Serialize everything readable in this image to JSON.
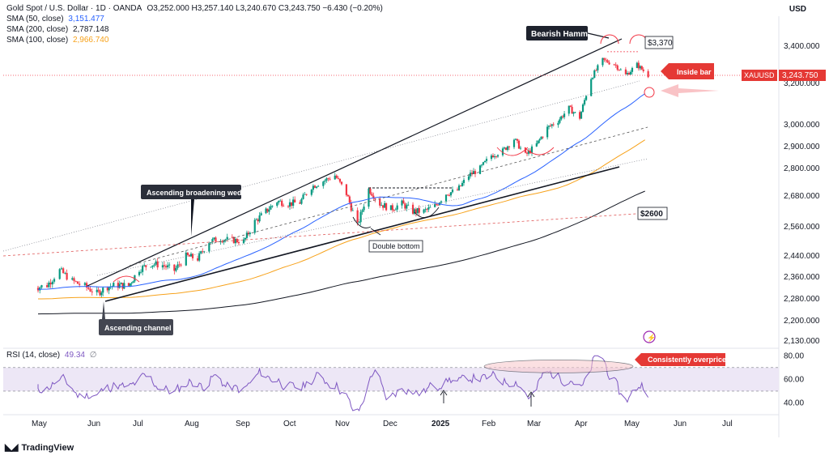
{
  "header": {
    "title": "Gold Spot / U.S. Dollar · 1D · OANDA",
    "ohlc": "O3,252.000 H3,257.140 L3,240.670 C3,243.750 −6.430 (−0.20%)",
    "currency": "USD"
  },
  "indicators": [
    {
      "label": "SMA (50, close)",
      "value": "3,151.477",
      "color": "#2962ff"
    },
    {
      "label": "SMA (200, close)",
      "value": "2,787.148",
      "color": "#131722"
    },
    {
      "label": "SMA (100, close)",
      "value": "2,966.740",
      "color": "#f7a21b"
    }
  ],
  "rsi": {
    "label": "RSI (14, close)",
    "value": "49.34",
    "symbol": "∅",
    "color": "#7e57c2"
  },
  "brand": "TradingView",
  "chart_data": [
    {
      "type": "candlestick",
      "symbol": "XAUUSD",
      "last_price": "3,243.750",
      "y_ticks": [
        "3,400.000",
        "3,200.000",
        "3,000.000",
        "2,900.000",
        "2,800.000",
        "2,680.000",
        "2,560.000",
        "2,440.000",
        "2,360.000",
        "2,280.000",
        "2,200.000",
        "2,130.000"
      ],
      "y_tick_values": [
        3400,
        3200,
        3000,
        2900,
        2800,
        2680,
        2560,
        2440,
        2360,
        2280,
        2200,
        2130
      ],
      "x_ticks": [
        "May",
        "Jun",
        "Jul",
        "Aug",
        "Sep",
        "Oct",
        "Nov",
        "Dec",
        "2025",
        "Feb",
        "Mar",
        "Apr",
        "May",
        "Jun",
        "Jul"
      ],
      "close_series": [
        [
          "2024-04-29",
          2320
        ],
        [
          "2024-05-06",
          2330
        ],
        [
          "2024-05-13",
          2385
        ],
        [
          "2024-05-20",
          2345
        ],
        [
          "2024-05-27",
          2325
        ],
        [
          "2024-06-03",
          2300
        ],
        [
          "2024-06-10",
          2325
        ],
        [
          "2024-06-17",
          2330
        ],
        [
          "2024-06-24",
          2328
        ],
        [
          "2024-07-01",
          2390
        ],
        [
          "2024-07-08",
          2410
        ],
        [
          "2024-07-15",
          2405
        ],
        [
          "2024-07-22",
          2385
        ],
        [
          "2024-07-29",
          2440
        ],
        [
          "2024-08-05",
          2430
        ],
        [
          "2024-08-12",
          2500
        ],
        [
          "2024-08-19",
          2510
        ],
        [
          "2024-08-26",
          2505
        ],
        [
          "2024-09-02",
          2500
        ],
        [
          "2024-09-09",
          2580
        ],
        [
          "2024-09-16",
          2620
        ],
        [
          "2024-09-23",
          2660
        ],
        [
          "2024-09-30",
          2650
        ],
        [
          "2024-10-07",
          2655
        ],
        [
          "2024-10-14",
          2720
        ],
        [
          "2024-10-21",
          2745
        ],
        [
          "2024-10-28",
          2770
        ],
        [
          "2024-11-04",
          2690
        ],
        [
          "2024-11-11",
          2565
        ],
        [
          "2024-11-18",
          2710
        ],
        [
          "2024-11-25",
          2650
        ],
        [
          "2024-12-02",
          2630
        ],
        [
          "2024-12-09",
          2650
        ],
        [
          "2024-12-16",
          2620
        ],
        [
          "2024-12-23",
          2620
        ],
        [
          "2024-12-30",
          2640
        ],
        [
          "2025-01-06",
          2690
        ],
        [
          "2025-01-13",
          2705
        ],
        [
          "2025-01-20",
          2770
        ],
        [
          "2025-01-27",
          2800
        ],
        [
          "2025-02-03",
          2860
        ],
        [
          "2025-02-10",
          2880
        ],
        [
          "2025-02-17",
          2935
        ],
        [
          "2025-02-24",
          2860
        ],
        [
          "2025-03-03",
          2910
        ],
        [
          "2025-03-10",
          2985
        ],
        [
          "2025-03-17",
          3020
        ],
        [
          "2025-03-24",
          3080
        ],
        [
          "2025-03-31",
          3035
        ],
        [
          "2025-04-07",
          3230
        ],
        [
          "2025-04-14",
          3325
        ],
        [
          "2025-04-21",
          3305
        ],
        [
          "2025-04-28",
          3245
        ],
        [
          "2025-05-05",
          3300
        ],
        [
          "2025-05-12",
          3243.75
        ]
      ],
      "sma_50": "3,151.477",
      "sma_100": "2,966.740",
      "sma_200": "2,787.148",
      "annotations": [
        {
          "text": "Bearish Hammer"
        },
        {
          "text": "$3,370"
        },
        {
          "text": "Inside bar"
        },
        {
          "text": "$2600"
        },
        {
          "text": "Ascending broadening wedge"
        },
        {
          "text": "Double bottom"
        },
        {
          "text": "Ascending channel"
        },
        {
          "text": "Consistently overpriced"
        }
      ],
      "hlines": [
        3370,
        2600
      ]
    },
    {
      "type": "line",
      "name": "RSI (14, close)",
      "ylim": [
        30,
        85
      ],
      "y_ticks": [
        "80.00",
        "60.00",
        "40.00"
      ],
      "y_tick_values": [
        80,
        60,
        40
      ],
      "bands": [
        70,
        50
      ],
      "last": 49.34
    }
  ]
}
